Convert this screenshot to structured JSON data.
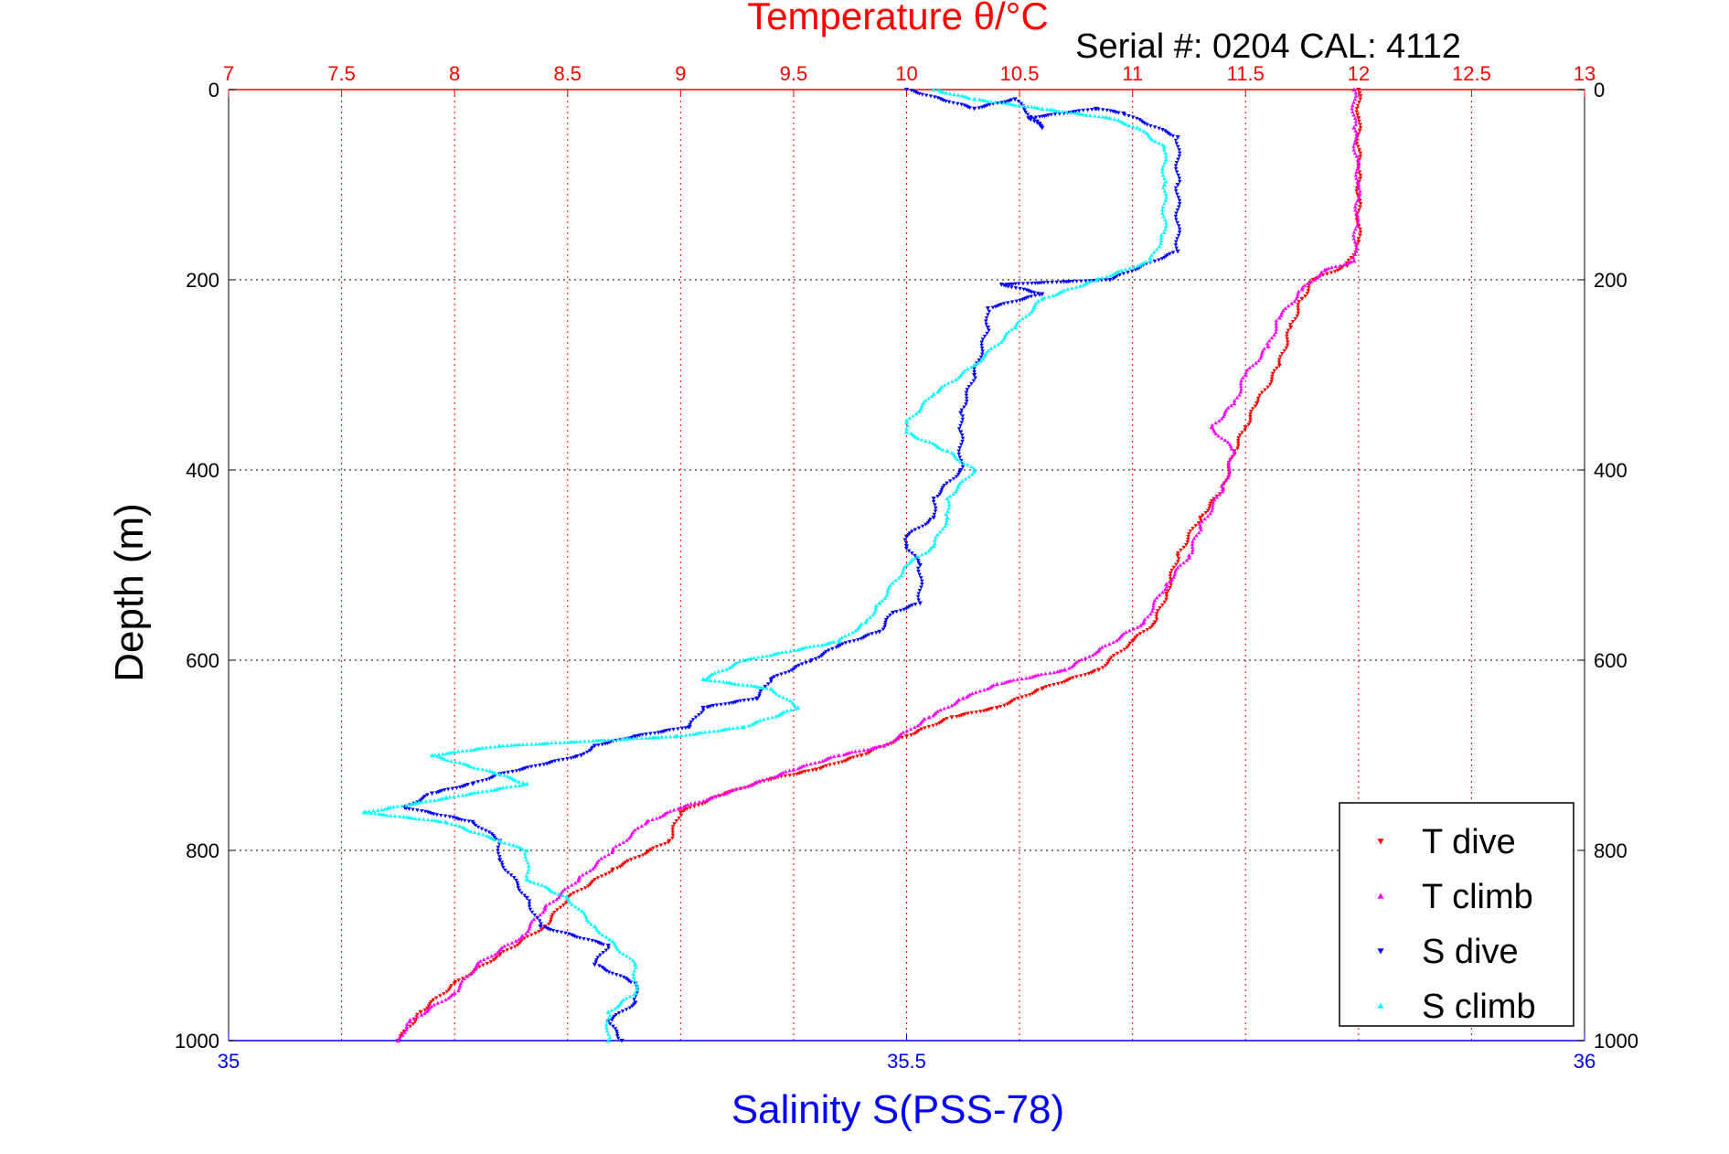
{
  "chart_data": {
    "type": "scatter",
    "title": "Temperature θ/°C",
    "subtitle": "Serial #: 0204  CAL: 4112",
    "ylabel": "Depth (m)",
    "x2label": "Salinity S(PSS-78)",
    "ylim": [
      0,
      1000
    ],
    "y_reversed": true,
    "temperature_axis": {
      "range": [
        7,
        13
      ],
      "ticks": [
        "7",
        "7.5",
        "8",
        "8.5",
        "9",
        "9.5",
        "10",
        "10.5",
        "11",
        "11.5",
        "12",
        "12.5",
        "13"
      ]
    },
    "salinity_axis": {
      "range": [
        35,
        36
      ],
      "ticks": [
        "35",
        "35.5",
        "36"
      ]
    },
    "depth_ticks": [
      "0",
      "200",
      "400",
      "600",
      "800",
      "1000"
    ],
    "grid": true,
    "legend_position": "bottom-right",
    "series": [
      {
        "name": "T dive",
        "axis": "temperature",
        "color": "#ff0000",
        "marker": "triangle-down",
        "points": [
          [
            12.0,
            0
          ],
          [
            12.0,
            30
          ],
          [
            12.0,
            80
          ],
          [
            12.0,
            160
          ],
          [
            11.95,
            185
          ],
          [
            11.8,
            200
          ],
          [
            11.75,
            220
          ],
          [
            11.7,
            250
          ],
          [
            11.65,
            290
          ],
          [
            11.55,
            330
          ],
          [
            11.5,
            355
          ],
          [
            11.45,
            380
          ],
          [
            11.4,
            420
          ],
          [
            11.3,
            450
          ],
          [
            11.2,
            490
          ],
          [
            11.15,
            530
          ],
          [
            11.1,
            560
          ],
          [
            11.0,
            580
          ],
          [
            10.85,
            610
          ],
          [
            10.6,
            630
          ],
          [
            10.4,
            650
          ],
          [
            10.2,
            660
          ],
          [
            10.0,
            680
          ],
          [
            9.8,
            700
          ],
          [
            9.6,
            715
          ],
          [
            9.4,
            725
          ],
          [
            9.2,
            740
          ],
          [
            9.0,
            760
          ],
          [
            8.95,
            790
          ],
          [
            8.7,
            820
          ],
          [
            8.5,
            850
          ],
          [
            8.4,
            880
          ],
          [
            8.2,
            910
          ],
          [
            8.0,
            940
          ],
          [
            7.85,
            970
          ],
          [
            7.75,
            1000
          ]
        ]
      },
      {
        "name": "T climb",
        "axis": "temperature",
        "color": "#ff00ff",
        "marker": "triangle-up",
        "points": [
          [
            11.98,
            0
          ],
          [
            11.98,
            40
          ],
          [
            12.0,
            100
          ],
          [
            11.98,
            180
          ],
          [
            11.85,
            190
          ],
          [
            11.75,
            210
          ],
          [
            11.65,
            240
          ],
          [
            11.6,
            270
          ],
          [
            11.5,
            300
          ],
          [
            11.45,
            330
          ],
          [
            11.35,
            355
          ],
          [
            11.45,
            380
          ],
          [
            11.4,
            420
          ],
          [
            11.3,
            460
          ],
          [
            11.25,
            490
          ],
          [
            11.15,
            520
          ],
          [
            11.05,
            560
          ],
          [
            10.85,
            590
          ],
          [
            10.7,
            610
          ],
          [
            10.4,
            625
          ],
          [
            10.25,
            640
          ],
          [
            10.1,
            660
          ],
          [
            9.9,
            690
          ],
          [
            9.7,
            700
          ],
          [
            9.5,
            715
          ],
          [
            9.2,
            740
          ],
          [
            9.0,
            755
          ],
          [
            8.85,
            770
          ],
          [
            8.7,
            800
          ],
          [
            8.55,
            830
          ],
          [
            8.4,
            860
          ],
          [
            8.3,
            890
          ],
          [
            8.1,
            920
          ],
          [
            8.0,
            950
          ],
          [
            7.8,
            980
          ],
          [
            7.75,
            1000
          ]
        ]
      },
      {
        "name": "S dive",
        "axis": "salinity",
        "color": "#0000ff",
        "marker": "triangle-down",
        "points": [
          [
            35.5,
            0
          ],
          [
            35.55,
            20
          ],
          [
            35.58,
            10
          ],
          [
            35.6,
            40
          ],
          [
            35.59,
            30
          ],
          [
            35.64,
            20
          ],
          [
            35.66,
            25
          ],
          [
            35.7,
            50
          ],
          [
            35.7,
            100
          ],
          [
            35.7,
            170
          ],
          [
            35.65,
            200
          ],
          [
            35.57,
            205
          ],
          [
            35.6,
            215
          ],
          [
            35.56,
            230
          ],
          [
            35.56,
            250
          ],
          [
            35.55,
            300
          ],
          [
            35.54,
            340
          ],
          [
            35.54,
            360
          ],
          [
            35.54,
            400
          ],
          [
            35.52,
            430
          ],
          [
            35.52,
            450
          ],
          [
            35.5,
            470
          ],
          [
            35.5,
            480
          ],
          [
            35.51,
            500
          ],
          [
            35.51,
            540
          ],
          [
            35.49,
            550
          ],
          [
            35.48,
            570
          ],
          [
            35.45,
            585
          ],
          [
            35.43,
            600
          ],
          [
            35.4,
            620
          ],
          [
            35.39,
            640
          ],
          [
            35.35,
            650
          ],
          [
            35.34,
            670
          ],
          [
            35.3,
            680
          ],
          [
            35.27,
            690
          ],
          [
            35.26,
            700
          ],
          [
            35.2,
            720
          ],
          [
            35.18,
            730
          ],
          [
            35.15,
            740
          ],
          [
            35.13,
            755
          ],
          [
            35.18,
            770
          ],
          [
            35.2,
            790
          ],
          [
            35.2,
            810
          ],
          [
            35.22,
            850
          ],
          [
            35.23,
            880
          ],
          [
            35.28,
            900
          ],
          [
            35.27,
            920
          ],
          [
            35.3,
            940
          ],
          [
            35.3,
            960
          ],
          [
            35.28,
            980
          ],
          [
            35.29,
            1000
          ]
        ]
      },
      {
        "name": "S climb",
        "axis": "salinity",
        "color": "#00ffff",
        "marker": "triangle-up",
        "points": [
          [
            35.52,
            0
          ],
          [
            35.55,
            10
          ],
          [
            35.6,
            20
          ],
          [
            35.65,
            30
          ],
          [
            35.67,
            40
          ],
          [
            35.69,
            60
          ],
          [
            35.69,
            100
          ],
          [
            35.69,
            150
          ],
          [
            35.68,
            180
          ],
          [
            35.64,
            200
          ],
          [
            35.6,
            220
          ],
          [
            35.58,
            250
          ],
          [
            35.55,
            290
          ],
          [
            35.52,
            320
          ],
          [
            35.5,
            350
          ],
          [
            35.5,
            360
          ],
          [
            35.53,
            380
          ],
          [
            35.55,
            400
          ],
          [
            35.53,
            430
          ],
          [
            35.53,
            450
          ],
          [
            35.52,
            480
          ],
          [
            35.5,
            500
          ],
          [
            35.48,
            540
          ],
          [
            35.47,
            560
          ],
          [
            35.45,
            580
          ],
          [
            35.38,
            600
          ],
          [
            35.35,
            620
          ],
          [
            35.4,
            630
          ],
          [
            35.42,
            650
          ],
          [
            35.38,
            670
          ],
          [
            35.33,
            680
          ],
          [
            35.2,
            690
          ],
          [
            35.15,
            700
          ],
          [
            35.2,
            720
          ],
          [
            35.22,
            730
          ],
          [
            35.16,
            745
          ],
          [
            35.1,
            760
          ],
          [
            35.16,
            770
          ],
          [
            35.2,
            790
          ],
          [
            35.22,
            800
          ],
          [
            35.22,
            830
          ],
          [
            35.25,
            850
          ],
          [
            35.27,
            880
          ],
          [
            35.3,
            920
          ],
          [
            35.3,
            950
          ],
          [
            35.28,
            970
          ],
          [
            35.28,
            1000
          ]
        ]
      }
    ]
  }
}
